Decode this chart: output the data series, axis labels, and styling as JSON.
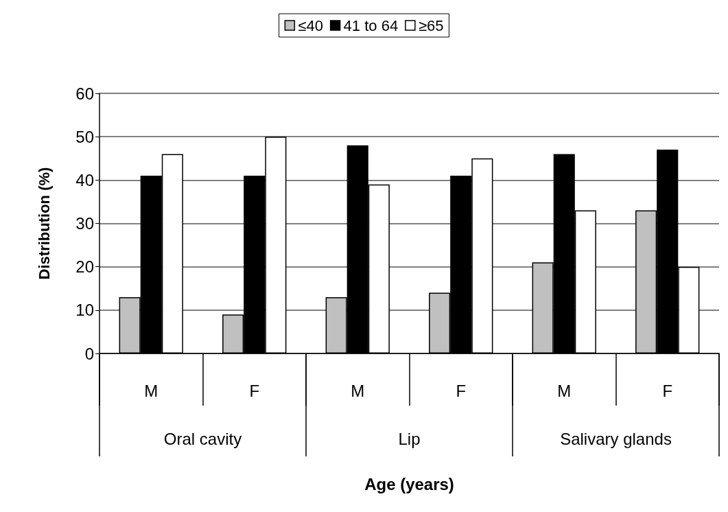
{
  "chart_data": {
    "type": "bar",
    "xlabel": "Age (years)",
    "ylabel": "Distribution (%)",
    "categories": [
      "M",
      "F",
      "M",
      "F",
      "M",
      "F"
    ],
    "annotations": [
      "Oral cavity",
      "Lip",
      "Salivary glands"
    ],
    "series": [
      {
        "name": "≤40",
        "color": "#c0c0c0",
        "values": [
          13,
          9,
          13,
          14,
          21,
          33
        ]
      },
      {
        "name": "41 to 64",
        "color": "#000000",
        "values": [
          41,
          41,
          48,
          41,
          46,
          47
        ]
      },
      {
        "name": "≥65",
        "color": "#ffffff",
        "values": [
          46,
          50,
          39,
          45,
          33,
          20
        ]
      }
    ],
    "ylim": [
      0,
      60
    ],
    "yticks": [
      0,
      10,
      20,
      30,
      40,
      50,
      60
    ],
    "grid": "y",
    "legend": "top"
  }
}
